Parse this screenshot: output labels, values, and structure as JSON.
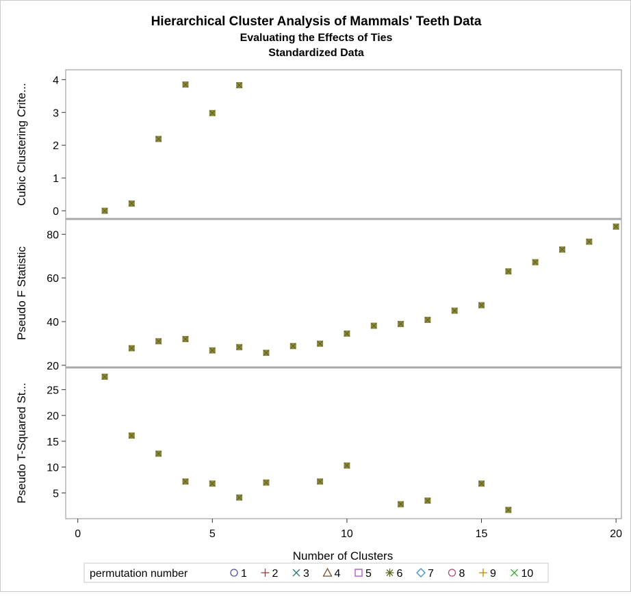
{
  "chart_data": {
    "type": "scatter",
    "title": "Hierarchical Cluster Analysis of Mammals' Teeth Data",
    "subtitle": [
      "Evaluating the Effects of Ties",
      "Standardized Data"
    ],
    "xlabel": "Number of Clusters",
    "xlim": [
      0,
      20
    ],
    "xticks": [
      0,
      5,
      10,
      15,
      20
    ],
    "marker_color": "#8a8a3a",
    "panels": [
      {
        "ylabel": "Cubic Clustering Crite...",
        "ylim": [
          -0.25,
          4.3
        ],
        "yticks": [
          0,
          1,
          2,
          3,
          4
        ],
        "points": [
          [
            1,
            0.0
          ],
          [
            2,
            0.22
          ],
          [
            3,
            2.19
          ],
          [
            4,
            3.85
          ],
          [
            5,
            2.98
          ],
          [
            6,
            3.83
          ]
        ]
      },
      {
        "ylabel": "Pseudo F Statistic",
        "ylim": [
          19,
          87
        ],
        "yticks": [
          20,
          40,
          60,
          80
        ],
        "points": [
          [
            2,
            27.8
          ],
          [
            3,
            31.0
          ],
          [
            4,
            32.0
          ],
          [
            5,
            26.8
          ],
          [
            6,
            28.3
          ],
          [
            7,
            25.7
          ],
          [
            8,
            28.8
          ],
          [
            9,
            29.9
          ],
          [
            10,
            34.5
          ],
          [
            11,
            38.1
          ],
          [
            12,
            38.9
          ],
          [
            13,
            40.8
          ],
          [
            14,
            45.0
          ],
          [
            15,
            47.5
          ],
          [
            16,
            63.0
          ],
          [
            17,
            67.2
          ],
          [
            18,
            73.0
          ],
          [
            19,
            76.6
          ],
          [
            20,
            83.5
          ]
        ]
      },
      {
        "ylabel": "Pseudo T-Squared St...",
        "ylim": [
          0,
          29.3
        ],
        "yticks": [
          5,
          10,
          15,
          20,
          25
        ],
        "points": [
          [
            1,
            27.5
          ],
          [
            2,
            16.1
          ],
          [
            3,
            12.6
          ],
          [
            4,
            7.2
          ],
          [
            5,
            6.8
          ],
          [
            6,
            4.1
          ],
          [
            7,
            7.0
          ],
          [
            9,
            7.2
          ],
          [
            10,
            10.3
          ],
          [
            12,
            2.8
          ],
          [
            13,
            3.5
          ],
          [
            15,
            6.8
          ],
          [
            16,
            1.7
          ]
        ]
      }
    ],
    "legend": {
      "placement": "bottom",
      "title": "permutation number",
      "entries": [
        {
          "label": "1",
          "symbol": "circle",
          "color": "#4a4fa8"
        },
        {
          "label": "2",
          "symbol": "plus",
          "color": "#a33a3a"
        },
        {
          "label": "3",
          "symbol": "x",
          "color": "#2f7a6e"
        },
        {
          "label": "4",
          "symbol": "triangle",
          "color": "#7a4a2a"
        },
        {
          "label": "5",
          "symbol": "square",
          "color": "#b04ac8"
        },
        {
          "label": "6",
          "symbol": "star",
          "color": "#5a6e1a"
        },
        {
          "label": "7",
          "symbol": "diamond",
          "color": "#3a8ed0"
        },
        {
          "label": "8",
          "symbol": "circle",
          "color": "#b04a6e"
        },
        {
          "label": "9",
          "symbol": "plus",
          "color": "#c8820a"
        },
        {
          "label": "10",
          "symbol": "x",
          "color": "#3aa83a"
        }
      ]
    }
  }
}
